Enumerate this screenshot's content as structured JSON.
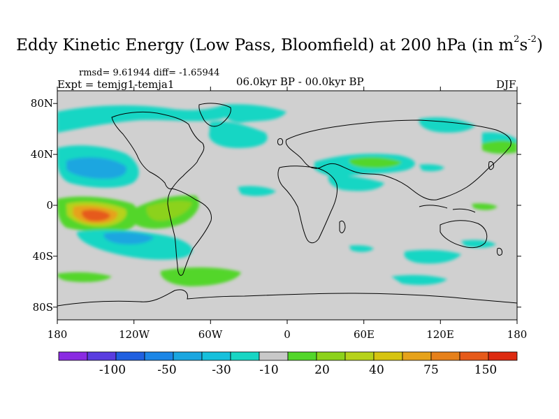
{
  "title": {
    "main": "Eddy Kinetic Energy (Low Pass, Bloomfield) at 200 hPa (in m",
    "sup1": "2",
    "mid": "s",
    "sup2": "-2",
    "end": ")"
  },
  "stats": "rmsd= 9.61944 diff= -1.65944",
  "experiment": "Expt = temjg1-temja1",
  "period": "06.0kyr BP - 00.0kyr BP",
  "season": "DJF",
  "map": {
    "projection": "cylindrical equidistant",
    "lon_range": [
      -180,
      180
    ],
    "lat_range": [
      -90,
      90
    ],
    "background_color": "#d0d0d0"
  },
  "lon_ticks": [
    "180",
    "120W",
    "60W",
    "0",
    "60E",
    "120E",
    "180"
  ],
  "lat_ticks": [
    "80N",
    "40N",
    "0",
    "40S",
    "80S"
  ],
  "colorbar": {
    "colors": [
      "#8a2be2",
      "#5a3de0",
      "#2060e0",
      "#1c86e6",
      "#1aa6e0",
      "#16c0dc",
      "#18d6c4",
      "#c8c8c8",
      "#52d62a",
      "#8cd21a",
      "#b6d21a",
      "#d6c410",
      "#e6a21a",
      "#e6801a",
      "#e65a1a",
      "#dd2a10"
    ],
    "labels": [
      "-100",
      "-50",
      "-30",
      "-10",
      "20",
      "40",
      "75",
      "150"
    ]
  }
}
